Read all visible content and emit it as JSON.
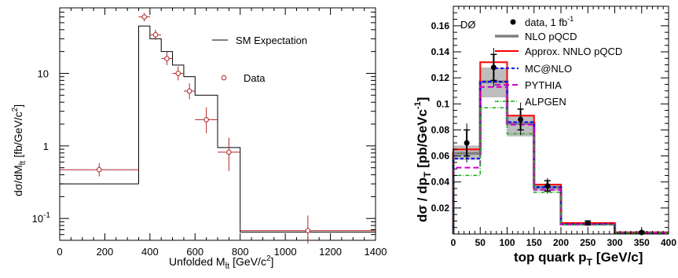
{
  "chart_data": [
    {
      "type": "step+errorbar",
      "xlabel": "Unfolded M",
      "xlabel_sub": "t̄t",
      "xlabel_unit": "[GeV/c",
      "xlabel_unit_sup": "2",
      "xlabel_unit_end": "]",
      "ylabel": "dσ/dM",
      "ylabel_sub": "t̄t",
      "ylabel_unit": "[fb/GeV/c",
      "ylabel_unit_sup": "2",
      "ylabel_unit_end": "]",
      "yscale": "log",
      "xlim": [
        0,
        1400
      ],
      "ylim": [
        0.05,
        80
      ],
      "xticks": [
        "0",
        "200",
        "400",
        "600",
        "800",
        "1000",
        "1200",
        "1400"
      ],
      "xtick_values": [
        0,
        200,
        400,
        600,
        800,
        1000,
        1200,
        1400
      ],
      "yticks": [
        {
          "base": "10",
          "exp": "-1",
          "value": 0.1
        },
        {
          "base": "1",
          "exp": "",
          "value": 1
        },
        {
          "base": "10",
          "exp": "",
          "value": 10
        }
      ],
      "legend": {
        "placement": "top-right",
        "entries": [
          "SM Expectation",
          "Data"
        ]
      },
      "sm_expectation": {
        "edges": [
          0,
          350,
          400,
          450,
          500,
          550,
          600,
          700,
          800,
          1400
        ],
        "values": [
          0.3,
          45,
          30,
          20,
          13,
          9,
          5,
          0.95,
          0.065
        ]
      },
      "data": [
        {
          "x": 175,
          "xerr": 175,
          "y": 0.47,
          "ylo": 0.38,
          "yhi": 0.58
        },
        {
          "x": 375,
          "xerr": 25,
          "y": 60,
          "ylo": 52,
          "yhi": 68
        },
        {
          "x": 425,
          "xerr": 25,
          "y": 34,
          "ylo": 29,
          "yhi": 40
        },
        {
          "x": 475,
          "xerr": 25,
          "y": 16,
          "ylo": 13,
          "yhi": 20
        },
        {
          "x": 525,
          "xerr": 25,
          "y": 10,
          "ylo": 8,
          "yhi": 12.5
        },
        {
          "x": 575,
          "xerr": 25,
          "y": 5.7,
          "ylo": 4.4,
          "yhi": 7.3
        },
        {
          "x": 650,
          "xerr": 50,
          "y": 2.3,
          "ylo": 1.5,
          "yhi": 3.4
        },
        {
          "x": 750,
          "xerr": 50,
          "y": 0.82,
          "ylo": 0.45,
          "yhi": 1.3
        },
        {
          "x": 1100,
          "xerr": 300,
          "y": 0.068,
          "ylo": 0.045,
          "yhi": 0.11
        }
      ],
      "colors": {
        "sm": "#000000",
        "data": "#b22222"
      }
    },
    {
      "type": "step+errorbar",
      "annotation": "DØ",
      "xlabel": "top quark p",
      "xlabel_sub": "T",
      "xlabel_unit": "[GeV/c]",
      "ylabel": "dσ / dp",
      "ylabel_sub": "T",
      "ylabel_unit": "[pb/GeVc",
      "ylabel_unit_sup": "-1",
      "ylabel_unit_end": "]",
      "xlim": [
        0,
        400
      ],
      "ylim": [
        0,
        0.175
      ],
      "xticks": [
        "0",
        "50",
        "100",
        "150",
        "200",
        "250",
        "300",
        "350",
        "400"
      ],
      "xtick_values": [
        0,
        50,
        100,
        150,
        200,
        250,
        300,
        350,
        400
      ],
      "yticks": [
        "0.02",
        "0.04",
        "0.06",
        "0.08",
        "0.1",
        "0.12",
        "0.14",
        "0.16"
      ],
      "ytick_values": [
        0.02,
        0.04,
        0.06,
        0.08,
        0.1,
        0.12,
        0.14,
        0.16
      ],
      "legend": {
        "placement": "top-right",
        "entries": [
          {
            "label": "data, 1 fb",
            "label_sup": "-1",
            "style": "marker",
            "color": "#000000"
          },
          {
            "label": "NLO pQCD",
            "style": "thick-solid",
            "color": "#808080"
          },
          {
            "label": "Approx. NNLO pQCD",
            "style": "solid",
            "color": "#ff0000"
          },
          {
            "label": "MC@NLO",
            "style": "dashed",
            "color": "#0000ff"
          },
          {
            "label": "PYTHIA",
            "style": "long-dashed",
            "color": "#cc00cc"
          },
          {
            "label": "ALPGEN",
            "style": "dash-dot",
            "color": "#22aa22"
          }
        ]
      },
      "edges": [
        0,
        50,
        100,
        150,
        200,
        300,
        400
      ],
      "nlo_band": {
        "lo": [
          0.057,
          0.105,
          0.075,
          0.033,
          0.007,
          0.0008
        ],
        "hi": [
          0.068,
          0.128,
          0.091,
          0.038,
          0.009,
          0.0013
        ]
      },
      "series": [
        {
          "name": "NLO pQCD",
          "values": [
            0.062,
            0.117,
            0.085,
            0.036,
            0.0078,
            0.001
          ]
        },
        {
          "name": "Approx. NNLO pQCD",
          "values": [
            0.065,
            0.132,
            0.091,
            0.038,
            0.0085,
            0.0012
          ]
        },
        {
          "name": "MC@NLO",
          "values": [
            0.058,
            0.117,
            0.086,
            0.036,
            0.0076,
            0.0009
          ]
        },
        {
          "name": "PYTHIA",
          "values": [
            0.051,
            0.113,
            0.084,
            0.034,
            0.0072,
            0.0009
          ]
        },
        {
          "name": "ALPGEN",
          "values": [
            0.045,
            0.097,
            0.077,
            0.032,
            0.007,
            0.0008
          ]
        }
      ],
      "data": [
        {
          "x": 25,
          "y": 0.07,
          "ylo": 0.06,
          "yhi": 0.08,
          "ylo_tot": 0.055,
          "yhi_tot": 0.085
        },
        {
          "x": 75,
          "y": 0.128,
          "ylo": 0.118,
          "yhi": 0.138,
          "ylo_tot": 0.113,
          "yhi_tot": 0.143
        },
        {
          "x": 125,
          "y": 0.088,
          "ylo": 0.08,
          "yhi": 0.096,
          "ylo_tot": 0.076,
          "yhi_tot": 0.101
        },
        {
          "x": 175,
          "y": 0.037,
          "ylo": 0.033,
          "yhi": 0.041,
          "ylo_tot": 0.031,
          "yhi_tot": 0.043
        },
        {
          "x": 250,
          "y": 0.0085,
          "ylo": 0.007,
          "yhi": 0.01,
          "ylo_tot": 0.0065,
          "yhi_tot": 0.0105
        },
        {
          "x": 350,
          "y": 0.0012,
          "ylo": 0.0006,
          "yhi": 0.0018,
          "ylo_tot": 0.0004,
          "yhi_tot": 0.002
        }
      ]
    }
  ]
}
